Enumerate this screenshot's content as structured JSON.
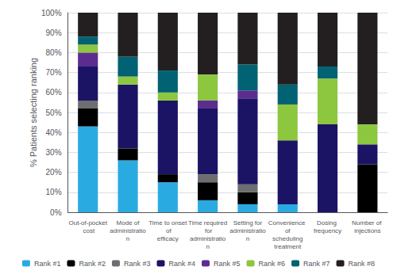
{
  "chart_data": {
    "type": "bar",
    "stacked": true,
    "categories": [
      "Out-of-pocket cost",
      "Mode of\nadministration",
      "Time to onset of\nefficacy",
      "Time required for\nadministration",
      "Setting for\nadministration",
      "Convenience of\nscheduling\ntreatment",
      "Dosing frequency",
      "Number of injections"
    ],
    "series": [
      {
        "name": "Rank #1",
        "color": "#29ABE2",
        "values": [
          43,
          26,
          15,
          6,
          4,
          4,
          0,
          0
        ]
      },
      {
        "name": "Rank #2",
        "color": "#000000",
        "values": [
          9,
          6,
          4,
          9,
          6,
          0,
          0,
          24
        ]
      },
      {
        "name": "Rank #3",
        "color": "#6D6E71",
        "values": [
          4,
          0,
          0,
          4,
          4,
          0,
          0,
          0
        ]
      },
      {
        "name": "Rank #4",
        "color": "#1B1464",
        "values": [
          17,
          32,
          37,
          33,
          43,
          32,
          44,
          10
        ]
      },
      {
        "name": "Rank #5",
        "color": "#5C2D91",
        "values": [
          7,
          0,
          0,
          4,
          4,
          0,
          0,
          0
        ]
      },
      {
        "name": "Rank #6",
        "color": "#8DC63F",
        "values": [
          4,
          4,
          4,
          13,
          0,
          18,
          23,
          10
        ]
      },
      {
        "name": "Rank #7",
        "color": "#006272",
        "values": [
          4,
          10,
          11,
          0,
          13,
          10,
          6,
          0
        ]
      },
      {
        "name": "Rank #8",
        "color": "#231F20",
        "values": [
          12,
          22,
          29,
          31,
          26,
          36,
          27,
          56
        ]
      }
    ],
    "ylabel": "% Patients selecting ranking",
    "ylim": [
      0,
      100
    ],
    "yticks": [
      {
        "value": 0,
        "label": "0%"
      },
      {
        "value": 10,
        "label": "10%"
      },
      {
        "value": 20,
        "label": "20%"
      },
      {
        "value": 30,
        "label": "30%"
      },
      {
        "value": 40,
        "label": "40%"
      },
      {
        "value": 50,
        "label": "50%"
      },
      {
        "value": 60,
        "label": "60%"
      },
      {
        "value": 70,
        "label": "70%"
      },
      {
        "value": 80,
        "label": "80%"
      },
      {
        "value": 90,
        "label": "90%"
      },
      {
        "value": 100,
        "label": "100%"
      }
    ],
    "grid": true,
    "legend": "bottom"
  }
}
